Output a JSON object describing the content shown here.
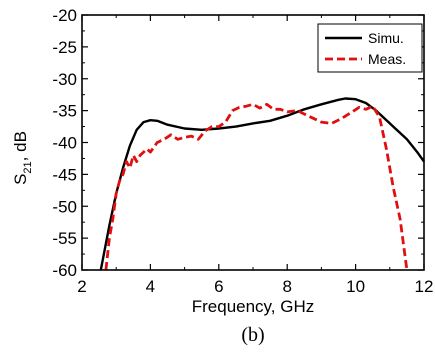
{
  "chart_data": {
    "type": "line",
    "xlabel": "Frequency, GHz",
    "ylabel_main": "S",
    "ylabel_sub": "21",
    "ylabel_suffix": ", dB",
    "xlim": [
      2,
      12
    ],
    "ylim": [
      -60,
      -20
    ],
    "xticks": [
      2,
      4,
      6,
      8,
      10,
      12
    ],
    "yticks": [
      -20,
      -25,
      -30,
      -35,
      -40,
      -45,
      -50,
      -55,
      -60
    ],
    "legend_position": "top-right",
    "caption": "(b)",
    "series": [
      {
        "name": "Simu.",
        "color": "#000000",
        "style": "solid",
        "x": [
          2.55,
          2.8,
          3.0,
          3.2,
          3.4,
          3.6,
          3.8,
          4.0,
          4.2,
          4.5,
          5.0,
          5.5,
          6.0,
          6.5,
          7.0,
          7.5,
          8.0,
          8.5,
          9.0,
          9.5,
          9.7,
          10.0,
          10.3,
          10.6,
          11.0,
          11.5,
          11.8,
          12.0
        ],
        "y": [
          -60,
          -53,
          -48,
          -44,
          -40.5,
          -38,
          -36.8,
          -36.5,
          -36.6,
          -37.2,
          -37.8,
          -38,
          -37.8,
          -37.5,
          -37,
          -36.6,
          -35.8,
          -34.8,
          -34,
          -33.3,
          -33.1,
          -33.2,
          -33.8,
          -35,
          -37,
          -39.5,
          -41.5,
          -43
        ]
      },
      {
        "name": "Meas.",
        "color": "#e01010",
        "style": "dashed",
        "x": [
          2.7,
          2.8,
          2.9,
          3.0,
          3.1,
          3.2,
          3.3,
          3.4,
          3.5,
          3.6,
          3.7,
          3.8,
          3.9,
          4.0,
          4.2,
          4.4,
          4.6,
          4.8,
          5.0,
          5.2,
          5.4,
          5.6,
          5.8,
          6.0,
          6.2,
          6.4,
          6.6,
          6.8,
          7.0,
          7.2,
          7.4,
          7.6,
          7.8,
          8.0,
          8.3,
          8.6,
          9.0,
          9.3,
          9.6,
          9.9,
          10.1,
          10.3,
          10.5,
          10.7,
          10.9,
          11.1,
          11.3,
          11.45,
          11.5,
          11.55
        ],
        "y": [
          -60,
          -55,
          -52,
          -48,
          -46,
          -45,
          -43,
          -44,
          -42,
          -43,
          -42,
          -41.5,
          -41,
          -41.5,
          -40,
          -39.5,
          -38.8,
          -39.5,
          -39.2,
          -39,
          -39.5,
          -38.2,
          -37.5,
          -37.5,
          -36.8,
          -35,
          -34.5,
          -34.3,
          -34,
          -34.6,
          -34,
          -34.8,
          -34.8,
          -35.2,
          -35,
          -35.8,
          -36.8,
          -37,
          -36.2,
          -35.2,
          -34.5,
          -34.8,
          -34.3,
          -36,
          -41,
          -47,
          -52,
          -58,
          -60,
          -60
        ]
      }
    ]
  }
}
